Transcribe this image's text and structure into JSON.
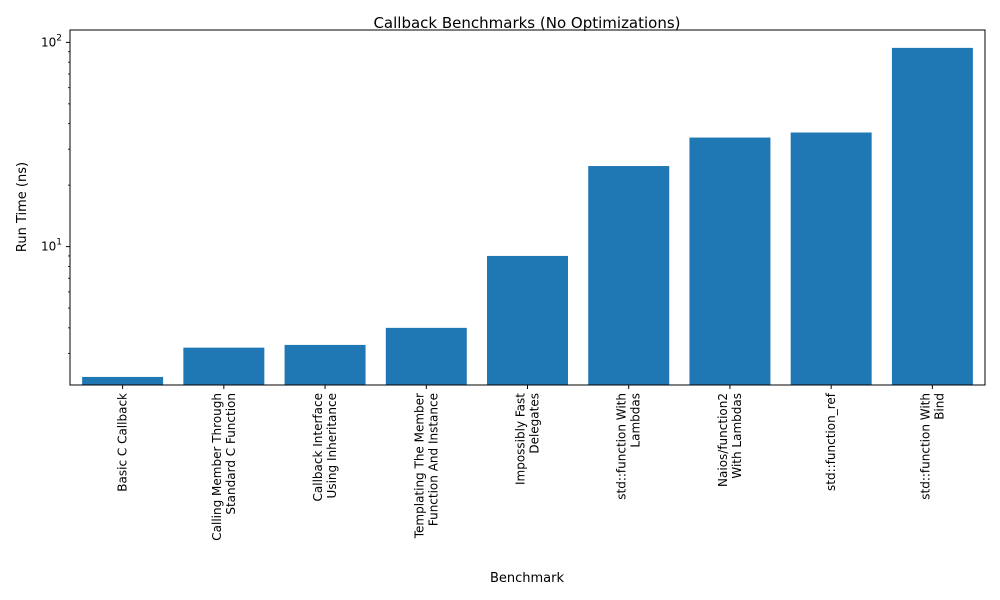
{
  "chart_data": {
    "type": "bar",
    "title": "Callback Benchmarks (No Optimizations)",
    "xlabel": "Benchmark",
    "ylabel": "Run Time (ns)",
    "yscale": "log",
    "ylim": [
      2.1,
      115
    ],
    "grid": false,
    "color": "#1f77b4",
    "y_major_ticks": [
      {
        "value": 10,
        "base": "10",
        "exp": "1"
      },
      {
        "value": 100,
        "base": "10",
        "exp": "2"
      }
    ],
    "categories": [
      [
        "Basic C Callback"
      ],
      [
        "Calling Member Through",
        "Standard C Function"
      ],
      [
        "Callback Interface",
        "Using Inheritance"
      ],
      [
        "Templating The Member",
        "Function And Instance"
      ],
      [
        "Impossibly Fast",
        "Delegates"
      ],
      [
        "std::function With",
        "Lambdas"
      ],
      [
        "Naios/function2",
        "With Lambdas"
      ],
      [
        "std::function_ref"
      ],
      [
        "std::function With",
        "Bind"
      ]
    ],
    "values": [
      2.3,
      3.2,
      3.3,
      4.0,
      9.0,
      24.8,
      34.2,
      36.2,
      94.0
    ]
  }
}
